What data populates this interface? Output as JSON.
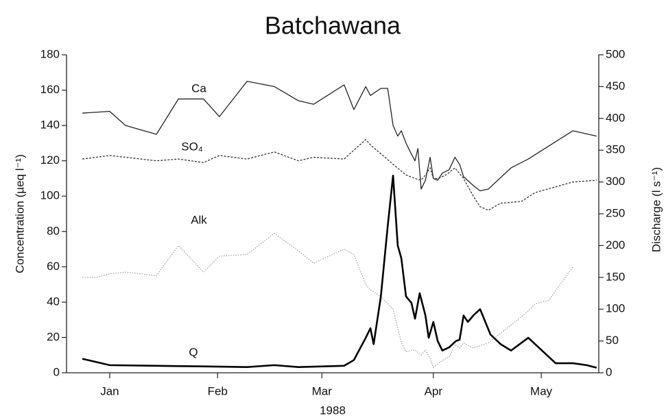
{
  "chart_data": {
    "type": "line",
    "title": "Batchawana",
    "x_label": "1988",
    "y_label": "Concentration (µeq l⁻¹)",
    "y2_label": "Discharge (l s⁻¹)",
    "xlim": [
      4,
      152
    ],
    "xticks": [
      {
        "value": 16,
        "label": "Jan"
      },
      {
        "value": 46,
        "label": "Feb"
      },
      {
        "value": 75,
        "label": "Mar"
      },
      {
        "value": 106,
        "label": "Apr"
      },
      {
        "value": 136,
        "label": "May"
      }
    ],
    "ylim": [
      0,
      180
    ],
    "yticks": [
      0,
      20,
      40,
      60,
      80,
      100,
      120,
      140,
      160,
      180
    ],
    "y2lim": [
      0,
      500
    ],
    "y2ticks": [
      0,
      50,
      100,
      150,
      200,
      250,
      300,
      350,
      400,
      450,
      500
    ],
    "grid": false,
    "series": [
      {
        "name": "Ca",
        "color": "#222222",
        "line_style": "solid",
        "x": [
          8.4,
          16,
          20.4,
          29,
          35.1,
          42.1,
          46.5,
          54.2,
          61.8,
          68.5,
          72.7,
          81.2,
          83.9,
          87.2,
          88.5,
          91.4,
          93.3,
          94.8,
          96.1,
          97.1,
          98.4,
          99.6,
          100.9,
          101.7,
          102.6,
          103.8,
          105.1,
          106,
          107.2,
          108.5,
          110.4,
          112,
          113.3,
          114.4,
          117.1,
          119,
          121.3,
          127.6,
          132.4,
          144.8,
          151.4
        ],
        "values": [
          147,
          148,
          140,
          135,
          155,
          155,
          145,
          165,
          162,
          154,
          152,
          163,
          149,
          162,
          157,
          161,
          161,
          140,
          134,
          137,
          130,
          125,
          120,
          127,
          104,
          109,
          122,
          110,
          109,
          113,
          115,
          122,
          118,
          111,
          106,
          103,
          104,
          116,
          121,
          137,
          134
        ]
      },
      {
        "name": "SO₄",
        "color": "#333333",
        "line_style": "dashed",
        "x": [
          8.4,
          16,
          20.4,
          29,
          35.1,
          42.1,
          46.5,
          54.2,
          61.8,
          68.5,
          72.7,
          81.2,
          83.9,
          87.2,
          88.5,
          91.4,
          94.8,
          98.4,
          100.9,
          102.6,
          103.8,
          105.1,
          106,
          107.4,
          109.5,
          112,
          114.4,
          117.1,
          119,
          121.3,
          124.7,
          130.5,
          134.3,
          144.8,
          151.4
        ],
        "values": [
          121,
          123,
          122,
          120,
          121,
          119,
          123,
          121,
          125,
          120,
          122,
          121,
          126,
          132,
          129,
          124,
          118,
          112,
          110,
          109,
          112,
          116,
          110,
          110,
          112,
          116,
          110,
          100,
          94,
          92,
          96,
          97,
          102,
          108,
          109
        ]
      },
      {
        "name": "Alk",
        "color": "#9a9a9a",
        "line_style": "dotted",
        "x": [
          8.4,
          12.2,
          16,
          20.4,
          29,
          35.1,
          42.1,
          46.5,
          54.2,
          61.8,
          68.5,
          72.7,
          81.2,
          83.9,
          87.2,
          88.5,
          91.4,
          94.8,
          97.1,
          98.4,
          100.9,
          102.6,
          103.8,
          105.1,
          106,
          108.5,
          110.4,
          112,
          113.3,
          114.4,
          117.1,
          121.3,
          127.6,
          132.4,
          134.3,
          138.1,
          144.8
        ],
        "values": [
          54,
          54,
          56,
          57,
          55,
          72,
          57,
          66,
          67,
          79,
          69,
          62,
          70,
          67,
          50,
          47,
          43,
          36,
          17,
          12,
          13,
          10,
          13,
          8,
          3,
          7,
          9,
          16,
          14,
          17,
          14,
          17,
          27,
          35,
          39,
          41,
          60
        ]
      },
      {
        "name": "Q",
        "color": "#000000",
        "line_style": "bold",
        "axis": "y2",
        "x": [
          8.4,
          16,
          29,
          42.1,
          54.2,
          61.8,
          68.5,
          81.2,
          83.9,
          87.2,
          88.5,
          89.4,
          91.4,
          93.3,
          94.8,
          96.1,
          97.1,
          98.4,
          99.9,
          100.9,
          102.2,
          103.8,
          104.7,
          106,
          107.2,
          108.5,
          110.4,
          112.3,
          113.3,
          114.4,
          115.6,
          117.1,
          119,
          121.9,
          124.7,
          127.6,
          132.4,
          136.2,
          140,
          144.8,
          148.6,
          151.4
        ],
        "values": [
          22,
          12,
          11,
          10,
          9,
          12,
          9,
          11,
          20,
          55,
          70,
          45,
          120,
          230,
          310,
          200,
          180,
          120,
          110,
          85,
          125,
          90,
          55,
          80,
          50,
          35,
          40,
          50,
          52,
          90,
          80,
          90,
          100,
          60,
          45,
          35,
          55,
          35,
          15,
          15,
          12,
          8
        ]
      }
    ]
  }
}
